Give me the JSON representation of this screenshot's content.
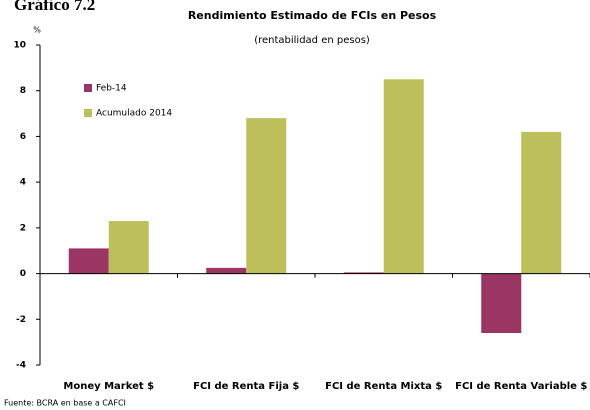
{
  "chart_data": {
    "type": "bar",
    "figure_label": "Gráfico 7.2",
    "title": "Rendimiento Estimado de FCIs en Pesos",
    "subtitle": "(rentabilidad en pesos)",
    "y_unit": "%",
    "source": "Fuente: BCRA en base a CAFCI",
    "categories": [
      "Money Market $",
      "FCI de Renta Fija $",
      "FCI de Renta Mixta $",
      "FCI de Renta Variable $"
    ],
    "series": [
      {
        "name": "Feb-14",
        "color": "#9b3563",
        "values": [
          1.1,
          0.25,
          0.05,
          -2.6
        ]
      },
      {
        "name": "Acumulado 2014",
        "color": "#bdbf5a",
        "values": [
          2.3,
          6.8,
          8.5,
          6.2
        ]
      }
    ],
    "ylim": [
      -4,
      10
    ],
    "yticks": [
      -4,
      -2,
      0,
      2,
      4,
      6,
      8,
      10
    ],
    "grid": false,
    "legend": "upper left"
  }
}
